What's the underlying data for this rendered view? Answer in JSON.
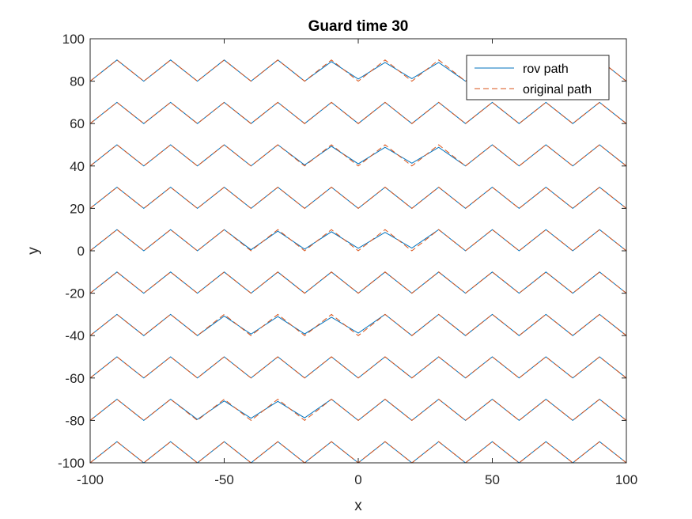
{
  "chart_data": {
    "type": "line",
    "title": "Guard time 30",
    "xlabel": "x",
    "ylabel": "y",
    "xlim": [
      -100,
      100
    ],
    "ylim": [
      -100,
      100
    ],
    "xticks": [
      -100,
      -50,
      0,
      50,
      100
    ],
    "yticks": [
      -100,
      -80,
      -60,
      -40,
      -20,
      0,
      20,
      40,
      60,
      80,
      100
    ],
    "grid": false,
    "legend_position": "top-right",
    "zigzag_vertices_x": [
      -100,
      -90,
      -80,
      -70,
      -60,
      -50,
      -40,
      -30,
      -20,
      -10,
      0,
      10,
      20,
      30,
      40,
      50,
      60,
      70,
      80,
      90,
      100
    ],
    "zigzag_amplitude": 10,
    "row_baselines": [
      -100,
      -80,
      -60,
      -40,
      -20,
      0,
      20,
      40,
      60,
      80
    ],
    "series": [
      {
        "name": "rov path",
        "color": "#0072BD",
        "style": "solid",
        "deviations": [
          {
            "row": 80,
            "points": [
              [
                -10,
                89.2
              ],
              [
                0,
                81
              ],
              [
                10,
                88.8
              ],
              [
                20,
                81.2
              ],
              [
                30,
                88.8
              ]
            ]
          },
          {
            "row": 40,
            "points": [
              [
                -20,
                40.5
              ],
              [
                -10,
                49.3
              ],
              [
                0,
                41
              ],
              [
                10,
                48.8
              ],
              [
                20,
                41.3
              ],
              [
                30,
                48.8
              ]
            ]
          },
          {
            "row": 0,
            "points": [
              [
                -40,
                0.5
              ],
              [
                -30,
                9.3
              ],
              [
                -20,
                0.8
              ],
              [
                -10,
                9
              ],
              [
                0,
                1.2
              ],
              [
                10,
                8.7
              ],
              [
                20,
                1.3
              ]
            ]
          },
          {
            "row": -40,
            "points": [
              [
                -50,
                -30.8
              ],
              [
                -40,
                -39.3
              ],
              [
                -30,
                -31
              ],
              [
                -20,
                -39.2
              ],
              [
                -10,
                -31.3
              ],
              [
                0,
                -38.8
              ]
            ]
          },
          {
            "row": -80,
            "points": [
              [
                -60,
                -79.5
              ],
              [
                -50,
                -70.8
              ],
              [
                -40,
                -79
              ],
              [
                -30,
                -71
              ],
              [
                -20,
                -78.8
              ]
            ]
          }
        ]
      },
      {
        "name": "original path",
        "color": "#D95319",
        "style": "dashed",
        "deviations": []
      }
    ]
  },
  "legend": {
    "rov_label": "rov path",
    "original_label": "original path"
  },
  "axes": {
    "xlabel": "x",
    "ylabel": "y"
  },
  "title": "Guard time 30"
}
